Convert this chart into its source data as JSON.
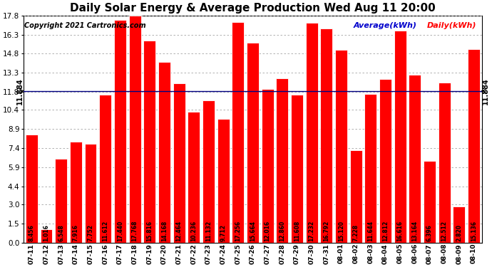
{
  "title": "Daily Solar Energy & Average Production Wed Aug 11 20:00",
  "copyright": "Copyright 2021 Cartronics.com",
  "average_value": 11.884,
  "average_label": "11.884",
  "bar_color": "#ff0000",
  "average_line_color": "#000080",
  "legend_average_color": "#0000cc",
  "legend_daily_color": "#ff0000",
  "background_color": "#ffffff",
  "grid_color": "#999999",
  "categories": [
    "07-11",
    "07-12",
    "07-13",
    "07-14",
    "07-15",
    "07-16",
    "07-17",
    "07-18",
    "07-19",
    "07-20",
    "07-21",
    "07-22",
    "07-23",
    "07-24",
    "07-25",
    "07-26",
    "07-27",
    "07-28",
    "07-29",
    "07-30",
    "07-31",
    "08-01",
    "08-02",
    "08-03",
    "08-04",
    "08-05",
    "08-06",
    "08-07",
    "08-08",
    "08-09",
    "08-10"
  ],
  "values": [
    8.456,
    1.016,
    6.548,
    7.916,
    7.752,
    11.612,
    17.44,
    17.768,
    15.816,
    14.168,
    12.464,
    10.236,
    11.132,
    9.712,
    17.256,
    15.664,
    12.016,
    12.86,
    11.608,
    17.232,
    16.792,
    15.12,
    7.228,
    11.644,
    12.812,
    16.616,
    13.164,
    6.396,
    12.512,
    2.82,
    15.136
  ],
  "ylim": [
    0.0,
    17.8
  ],
  "yticks": [
    0.0,
    1.5,
    3.0,
    4.4,
    5.9,
    7.4,
    8.9,
    10.4,
    11.8,
    13.3,
    14.8,
    16.3,
    17.8
  ],
  "value_fontsize": 5.5,
  "title_fontsize": 11,
  "copyright_fontsize": 7,
  "legend_fontsize": 8,
  "ytick_fontsize": 7.5,
  "xtick_fontsize": 6.5
}
